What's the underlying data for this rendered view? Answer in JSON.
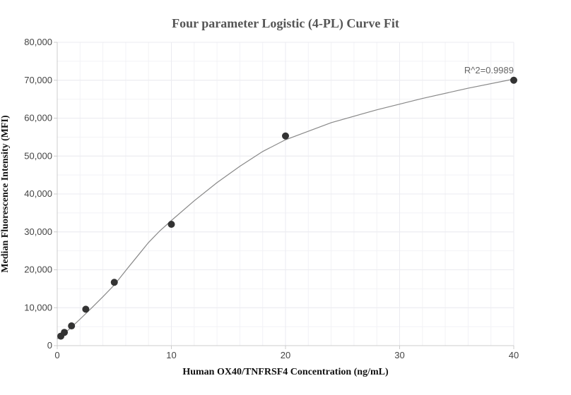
{
  "chart_data": {
    "type": "scatter",
    "title": "Four parameter Logistic (4-PL) Curve Fit",
    "xlabel": "Human OX40/TNFRSF4 Concentration (ng/mL)",
    "ylabel": "Median Fluorescence Intensity (MFI)",
    "xlim": [
      0,
      40
    ],
    "ylim": [
      0,
      80000
    ],
    "x_ticks": [
      0,
      10,
      20,
      30,
      40
    ],
    "x_tick_labels": [
      "0",
      "10",
      "20",
      "30",
      "40"
    ],
    "y_ticks": [
      0,
      10000,
      20000,
      30000,
      40000,
      50000,
      60000,
      70000,
      80000
    ],
    "y_tick_labels": [
      "0",
      "10,000",
      "20,000",
      "30,000",
      "40,000",
      "50,000",
      "60,000",
      "70,000",
      "80,000"
    ],
    "grid": true,
    "points": [
      {
        "x": 0.3125,
        "y": 2500
      },
      {
        "x": 0.625,
        "y": 3500
      },
      {
        "x": 1.25,
        "y": 5200
      },
      {
        "x": 2.5,
        "y": 9600
      },
      {
        "x": 5,
        "y": 16700
      },
      {
        "x": 10,
        "y": 32000
      },
      {
        "x": 20,
        "y": 55300
      },
      {
        "x": 40,
        "y": 70000
      }
    ],
    "fit_curve": {
      "x": [
        0,
        1,
        2,
        3,
        4,
        5,
        6,
        7,
        8,
        9,
        10,
        12,
        14,
        16,
        18,
        20,
        24,
        28,
        32,
        36,
        40
      ],
      "y": [
        1800,
        4200,
        7000,
        9900,
        12900,
        16000,
        19800,
        23500,
        27200,
        30300,
        33000,
        38200,
        43000,
        47300,
        51200,
        54300,
        58800,
        62200,
        65200,
        67900,
        70300
      ]
    },
    "annotations": [
      {
        "text": "R^2=0.9989",
        "x": 40,
        "y": 70000
      }
    ],
    "colors": {
      "points": "#333333",
      "curve": "#888888",
      "grid": "#ebebf0",
      "axis": "#cccccc"
    }
  }
}
